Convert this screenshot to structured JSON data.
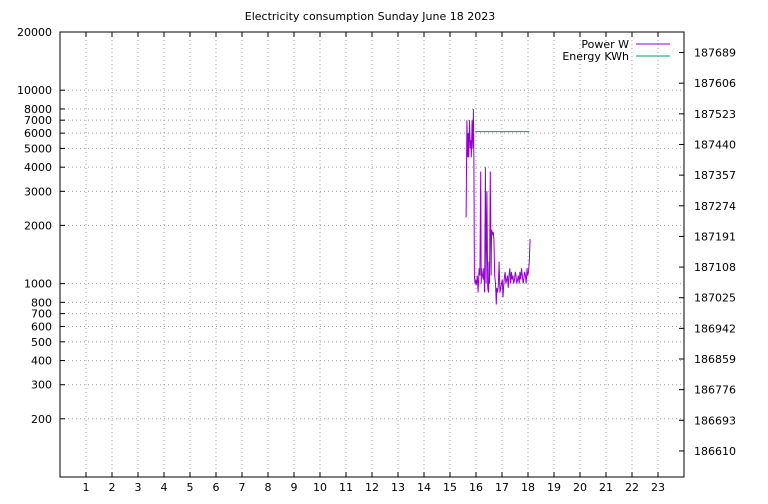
{
  "chart_data": {
    "type": "line",
    "title": "Electricity consumption Sunday June 18 2023",
    "xlabel": "",
    "ylabel": "",
    "xlim": [
      0,
      24
    ],
    "x_ticks": [
      1,
      2,
      3,
      4,
      5,
      6,
      7,
      8,
      9,
      10,
      11,
      12,
      13,
      14,
      15,
      16,
      17,
      18,
      19,
      20,
      21,
      22,
      23
    ],
    "y_left": {
      "scale": "log",
      "ylim": [
        100,
        20000
      ],
      "ticks": [
        {
          "value": 200,
          "label": "200"
        },
        {
          "value": 300,
          "label": "300"
        },
        {
          "value": 400,
          "label": "400"
        },
        {
          "value": 500,
          "label": "500"
        },
        {
          "value": 600,
          "label": "600"
        },
        {
          "value": 700,
          "label": "700"
        },
        {
          "value": 800,
          "label": "800"
        },
        {
          "value": 1000,
          "label": "1000"
        },
        {
          "value": 2000,
          "label": "2000"
        },
        {
          "value": 3000,
          "label": "3000"
        },
        {
          "value": 4000,
          "label": "4000"
        },
        {
          "value": 5000,
          "label": "5000"
        },
        {
          "value": 6000,
          "label": "6000"
        },
        {
          "value": 7000,
          "label": "7000"
        },
        {
          "value": 8000,
          "label": "8000"
        },
        {
          "value": 10000,
          "label": "10000"
        },
        {
          "value": 20000,
          "label": "20000"
        }
      ]
    },
    "y_right": {
      "ticks": [
        "187689",
        "187606",
        "187523",
        "187440",
        "187357",
        "187274",
        "187191",
        "187108",
        "187025",
        "186942",
        "186859",
        "186776",
        "186693",
        "186610"
      ]
    },
    "grid": true,
    "legend_position": "top-right",
    "series": [
      {
        "name": "Power W",
        "color": "#9400d3",
        "axis": "left",
        "x": [
          15.62,
          15.65,
          15.68,
          15.7,
          15.72,
          15.75,
          15.78,
          15.8,
          15.82,
          15.85,
          15.88,
          15.9,
          15.92,
          15.94,
          15.96,
          15.98,
          16.0,
          16.02,
          16.05,
          16.08,
          16.1,
          16.12,
          16.15,
          16.18,
          16.2,
          16.22,
          16.25,
          16.28,
          16.3,
          16.33,
          16.36,
          16.39,
          16.42,
          16.45,
          16.48,
          16.5,
          16.52,
          16.55,
          16.58,
          16.6,
          16.63,
          16.66,
          16.69,
          16.72,
          16.75,
          16.78,
          16.8,
          16.83,
          16.86,
          16.89,
          16.92,
          16.95,
          16.98,
          17.01,
          17.04,
          17.07,
          17.1,
          17.12,
          17.15,
          17.18,
          17.21,
          17.24,
          17.27,
          17.3,
          17.33,
          17.36,
          17.39,
          17.42,
          17.45,
          17.48,
          17.51,
          17.54,
          17.57,
          17.6,
          17.63,
          17.66,
          17.69,
          17.72,
          17.75,
          17.78,
          17.81,
          17.84,
          17.87,
          17.9,
          17.93,
          17.96,
          17.99,
          18.02,
          18.05,
          18.08
        ],
        "y": [
          2200,
          7000,
          4500,
          6000,
          4500,
          7000,
          5000,
          5500,
          4500,
          7000,
          5000,
          8000,
          4200,
          1100,
          1000,
          1050,
          980,
          1000,
          1100,
          900,
          1050,
          1200,
          1100,
          3800,
          1000,
          1200,
          1100,
          1050,
          1200,
          900,
          4000,
          1000,
          3000,
          950,
          900,
          1300,
          1000,
          3800,
          1100,
          1900,
          1800,
          1850,
          1700,
          1100,
          1000,
          780,
          950,
          900,
          1000,
          1300,
          900,
          950,
          1000,
          1050,
          850,
          1000,
          1100,
          1150,
          1000,
          1050,
          1100,
          950,
          1100,
          1200,
          1000,
          1150,
          1050,
          1100,
          1000,
          1050,
          1150,
          1100,
          1000,
          1050,
          1100,
          1000,
          1150,
          1050,
          1200,
          1100,
          1000,
          1050,
          1150,
          1100,
          1000,
          1200,
          1100,
          1150,
          1300,
          1700
        ]
      },
      {
        "name": "Energy KWh",
        "color": "#009e73",
        "axis": "right",
        "x": [
          15.97,
          18.05
        ],
        "y": [
          187475,
          187475
        ]
      }
    ]
  }
}
